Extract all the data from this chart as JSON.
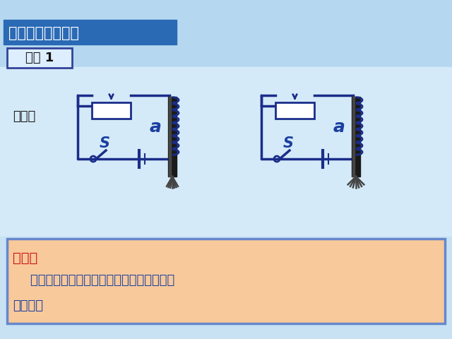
{
  "title": "二、电磁铁的磁性",
  "title_bg": "#2a6ab5",
  "title_text_color": "#ffffff",
  "demo_label": "演示 1",
  "phenomenon_label": "现象：",
  "conclusion_label": "结论：",
  "conclusion_text1": "    匝数一定时，通入的电流越大，电磁铁的磁",
  "conclusion_text2": "性越强。",
  "conclusion_label_color": "#cc1111",
  "conclusion_text_color": "#1a3fa0",
  "conclusion_bg": "#f8c99a",
  "conclusion_border": "#6688cc",
  "circuit_color": "#1a2d8a",
  "bg_color": "#b8dcf0",
  "bg_mid_color": "#d8eef8",
  "coil_color": "#1a2d8a",
  "label_a_color": "#1a3fa0",
  "label_S_color": "#1a3fa0",
  "nail_color": "#444444"
}
